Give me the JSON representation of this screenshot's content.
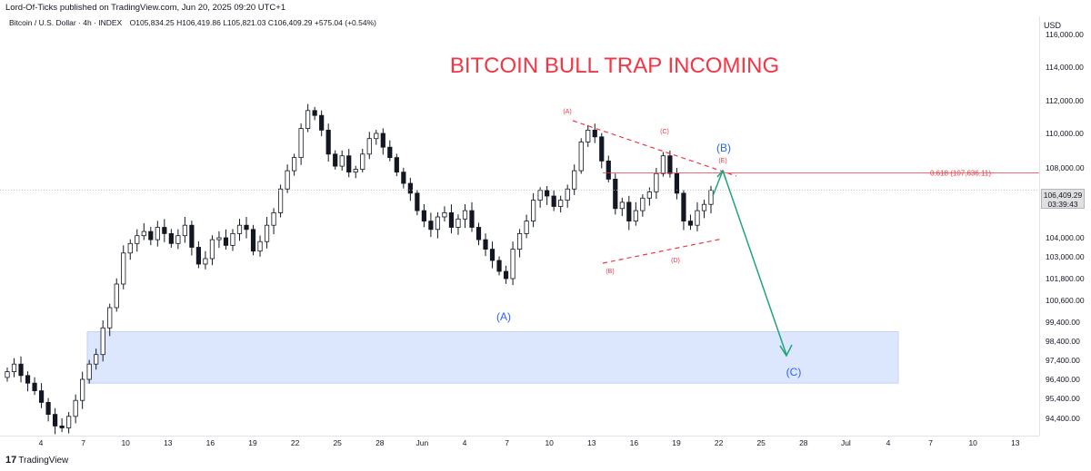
{
  "header": {
    "published": "Lord-Of-Ticks published on TradingView.com, Jun 20, 2025 09:20 UTC+1",
    "symbol": "Bitcoin / U.S. Dollar · 4h · INDEX",
    "open": "O105,834.25",
    "high": "H106,419.86",
    "low": "L105,821.03",
    "close": "C106,409.29",
    "change": "+575.04 (+0.54%)",
    "currency": "USD"
  },
  "footer": {
    "brand": "TradingView",
    "logo_mark": "17"
  },
  "price_label": {
    "price": "106,409.29",
    "countdown": "03:39:43"
  },
  "colors": {
    "up": "#131722",
    "down": "#131722",
    "title": "#f23645",
    "fib": "#f23645",
    "wave": "#2962ff",
    "arrow": "#22a37a",
    "zone": "#dce6fd",
    "grid": "#f0f3fa"
  },
  "chart_data": {
    "type": "candlestick",
    "title": "BITCOIN BULL TRAP INCOMING",
    "timeframe": "4h",
    "x_ticks": [
      "4",
      "7",
      "10",
      "13",
      "16",
      "19",
      "22",
      "25",
      "28",
      "Jun",
      "4",
      "7",
      "10",
      "13",
      "16",
      "19",
      "22",
      "25",
      "28",
      "Jul",
      "4",
      "7",
      "10",
      "13"
    ],
    "y_ticks": [
      "94,400.00",
      "95,400.00",
      "96,400.00",
      "97,400.00",
      "98,400.00",
      "99,400.00",
      "100,600.00",
      "101,800.00",
      "103,000.00",
      "104,000.00",
      "106,000.00",
      "108,000.00",
      "110,000.00",
      "112,000.00",
      "114,000.00"
    ],
    "y_partial_label": "116,000.00",
    "ylim": [
      93500,
      116500
    ],
    "closes_approx": [
      96800,
      97200,
      96600,
      96200,
      95800,
      95200,
      94600,
      94000,
      93900,
      94500,
      95300,
      96400,
      97200,
      97700,
      99100,
      100200,
      101500,
      103200,
      103700,
      104100,
      104300,
      103900,
      104500,
      104200,
      103700,
      104100,
      104600,
      103500,
      102600,
      102900,
      103900,
      104000,
      103600,
      104200,
      104600,
      104400,
      103300,
      103800,
      104600,
      105200,
      106500,
      107800,
      108600,
      110300,
      111400,
      111100,
      110200,
      108800,
      108100,
      108700,
      107700,
      107900,
      108800,
      109700,
      110000,
      109200,
      108600,
      107700,
      106900,
      106200,
      105300,
      104800,
      104400,
      105000,
      105200,
      104500,
      104900,
      105300,
      104500,
      103900,
      103400,
      102800,
      102200,
      101800,
      103400,
      104200,
      104800,
      105800,
      106400,
      106000,
      105500,
      105800,
      106500,
      107800,
      109500,
      110200,
      109800,
      108400,
      107200,
      105400,
      105700,
      104800,
      105300,
      105900,
      106300,
      107600,
      108700,
      107600,
      106200,
      104800,
      104600,
      105300,
      105600,
      106409
    ],
    "annotations": {
      "wave_A_low": "(A)",
      "wave_B_target": "(B)",
      "wave_C_target": "(C)",
      "triangle_labels": [
        "(A)",
        "(B)",
        "(C)",
        "(D)",
        "(E)"
      ],
      "fib_level": "0.618 (107,636.11)",
      "fib_value": 107636.11,
      "demand_zone": [
        96200,
        98900
      ]
    }
  }
}
